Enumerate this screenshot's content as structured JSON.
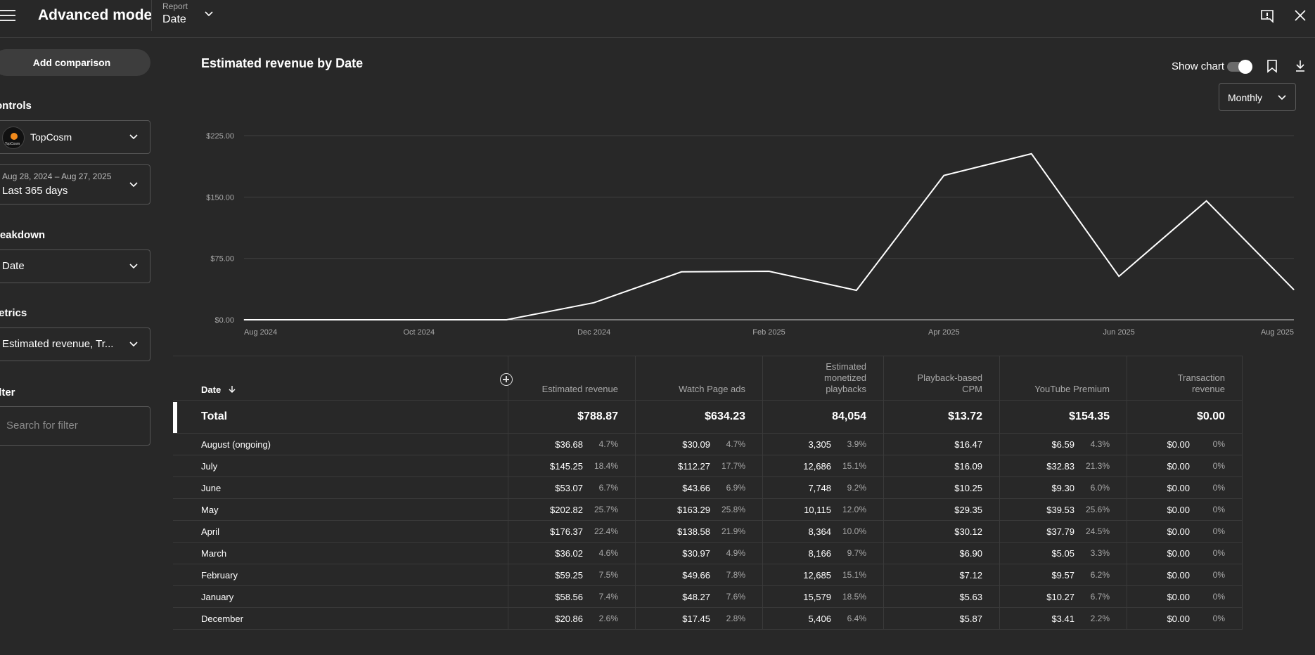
{
  "header": {
    "title": "Advanced mode",
    "report_label": "Report",
    "report_value": "Date",
    "feedback_icon": "feedback-icon",
    "close_icon": "close-icon"
  },
  "sidebar": {
    "add_comparison": "Add comparison",
    "controls_heading": "ontrols",
    "channel_name": "TopCosm",
    "channel_logo_text": "TopCosm",
    "date_range_sub": "Aug 28, 2024 – Aug 27, 2025",
    "date_range_value": "Last 365 days",
    "breakdown_heading": "reakdown",
    "breakdown_value": "Date",
    "metrics_heading": "letrics",
    "metrics_value": "Estimated revenue, Tr...",
    "filter_heading": "ilter",
    "filter_placeholder": "Search for filter"
  },
  "chart_panel": {
    "title": "Estimated revenue by Date",
    "show_chart_label": "Show chart",
    "show_chart_on": true,
    "interval": "Monthly"
  },
  "chart_data": {
    "type": "line",
    "title": "Estimated revenue by Date",
    "x": [
      "Aug 2024",
      "Sep 2024",
      "Oct 2024",
      "Nov 2024",
      "Dec 2024",
      "Jan 2025",
      "Feb 2025",
      "Mar 2025",
      "Apr 2025",
      "May 2025",
      "Jun 2025",
      "Jul 2025",
      "Aug 2025"
    ],
    "x_tick_labels": [
      "Aug 2024",
      "Oct 2024",
      "Dec 2024",
      "Feb 2025",
      "Apr 2025",
      "Jun 2025",
      "Aug 2025"
    ],
    "y_tick_labels": [
      "$0.00",
      "$75.00",
      "$150.00",
      "$225.00"
    ],
    "ylim": [
      0,
      225
    ],
    "series": [
      {
        "values": [
          0,
          0,
          0,
          0,
          20.86,
          58.56,
          59.25,
          36.02,
          176.37,
          202.82,
          53.07,
          145.25,
          36.68
        ]
      }
    ],
    "grid": true,
    "line_color": "#ffffff"
  },
  "table": {
    "columns": [
      {
        "label": "Date"
      },
      {
        "label": "Estimated revenue"
      },
      {
        "label": "Watch Page ads"
      },
      {
        "label": "Estimated monetized playbacks"
      },
      {
        "label": "Playback-based CPM"
      },
      {
        "label": "YouTube Premium"
      },
      {
        "label": "Transaction revenue"
      }
    ],
    "total": {
      "label": "Total",
      "values": [
        "$788.87",
        "$634.23",
        "84,054",
        "$13.72",
        "$154.35",
        "$0.00"
      ]
    },
    "rows": [
      {
        "label": "August (ongoing)",
        "cells": [
          [
            "$36.68",
            "4.7%"
          ],
          [
            "$30.09",
            "4.7%"
          ],
          [
            "3,305",
            "3.9%"
          ],
          [
            "$16.47",
            ""
          ],
          [
            "$6.59",
            "4.3%"
          ],
          [
            "$0.00",
            "0%"
          ]
        ]
      },
      {
        "label": "July",
        "cells": [
          [
            "$145.25",
            "18.4%"
          ],
          [
            "$112.27",
            "17.7%"
          ],
          [
            "12,686",
            "15.1%"
          ],
          [
            "$16.09",
            ""
          ],
          [
            "$32.83",
            "21.3%"
          ],
          [
            "$0.00",
            "0%"
          ]
        ]
      },
      {
        "label": "June",
        "cells": [
          [
            "$53.07",
            "6.7%"
          ],
          [
            "$43.66",
            "6.9%"
          ],
          [
            "7,748",
            "9.2%"
          ],
          [
            "$10.25",
            ""
          ],
          [
            "$9.30",
            "6.0%"
          ],
          [
            "$0.00",
            "0%"
          ]
        ]
      },
      {
        "label": "May",
        "cells": [
          [
            "$202.82",
            "25.7%"
          ],
          [
            "$163.29",
            "25.8%"
          ],
          [
            "10,115",
            "12.0%"
          ],
          [
            "$29.35",
            ""
          ],
          [
            "$39.53",
            "25.6%"
          ],
          [
            "$0.00",
            "0%"
          ]
        ]
      },
      {
        "label": "April",
        "cells": [
          [
            "$176.37",
            "22.4%"
          ],
          [
            "$138.58",
            "21.9%"
          ],
          [
            "8,364",
            "10.0%"
          ],
          [
            "$30.12",
            ""
          ],
          [
            "$37.79",
            "24.5%"
          ],
          [
            "$0.00",
            "0%"
          ]
        ]
      },
      {
        "label": "March",
        "cells": [
          [
            "$36.02",
            "4.6%"
          ],
          [
            "$30.97",
            "4.9%"
          ],
          [
            "8,166",
            "9.7%"
          ],
          [
            "$6.90",
            ""
          ],
          [
            "$5.05",
            "3.3%"
          ],
          [
            "$0.00",
            "0%"
          ]
        ]
      },
      {
        "label": "February",
        "cells": [
          [
            "$59.25",
            "7.5%"
          ],
          [
            "$49.66",
            "7.8%"
          ],
          [
            "12,685",
            "15.1%"
          ],
          [
            "$7.12",
            ""
          ],
          [
            "$9.57",
            "6.2%"
          ],
          [
            "$0.00",
            "0%"
          ]
        ]
      },
      {
        "label": "January",
        "cells": [
          [
            "$58.56",
            "7.4%"
          ],
          [
            "$48.27",
            "7.6%"
          ],
          [
            "15,579",
            "18.5%"
          ],
          [
            "$5.63",
            ""
          ],
          [
            "$10.27",
            "6.7%"
          ],
          [
            "$0.00",
            "0%"
          ]
        ]
      },
      {
        "label": "December",
        "cells": [
          [
            "$20.86",
            "2.6%"
          ],
          [
            "$17.45",
            "2.8%"
          ],
          [
            "5,406",
            "6.4%"
          ],
          [
            "$5.87",
            ""
          ],
          [
            "$3.41",
            "2.2%"
          ],
          [
            "$0.00",
            "0%"
          ]
        ]
      }
    ]
  },
  "colors": {
    "background": "#282828",
    "border": "#3a3a3a",
    "text": "#ffffff",
    "muted": "#aaaaaa"
  }
}
